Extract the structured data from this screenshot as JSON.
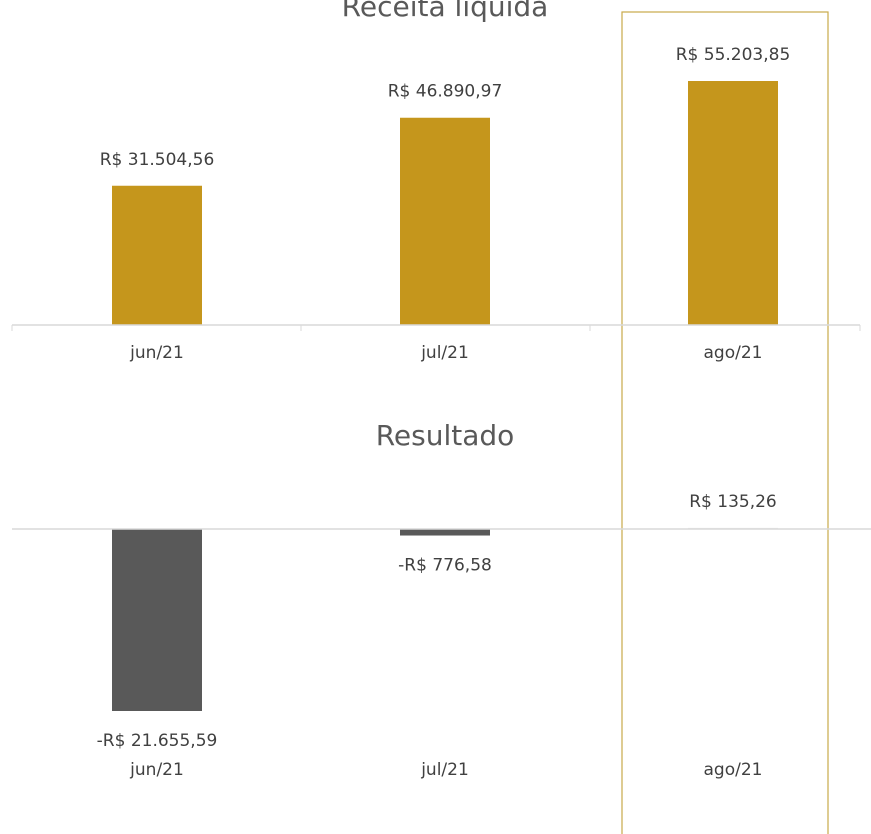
{
  "chart_data": [
    {
      "type": "bar",
      "title": "Receita líquida",
      "categories": [
        "jun/21",
        "jul/21",
        "ago/21"
      ],
      "values": [
        31504.56,
        46890.97,
        55203.85
      ],
      "value_labels": [
        "R$ 31.504,56",
        "R$ 46.890,97",
        "R$ 55.203,85"
      ],
      "color": "#c5961c"
    },
    {
      "type": "bar",
      "title": "Resultado",
      "categories": [
        "jun/21",
        "jul/21",
        "ago/21"
      ],
      "values": [
        -21655.59,
        -776.58,
        135.26
      ],
      "value_labels": [
        "-R$ 21.655,59",
        "-R$ 776,58",
        "R$ 135,26"
      ],
      "color": "#595959"
    }
  ]
}
